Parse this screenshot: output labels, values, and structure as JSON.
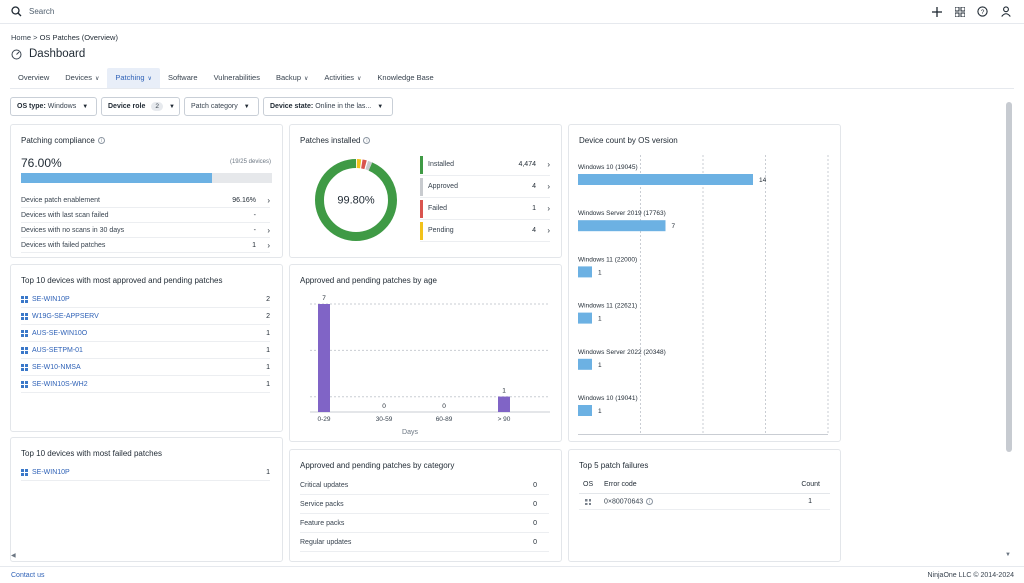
{
  "topbar": {
    "search_placeholder": "Search",
    "icons": [
      "plus-icon",
      "grid-icon",
      "help-icon",
      "user-icon"
    ]
  },
  "breadcrumb": {
    "home": "Home",
    "separator": ">",
    "current": "OS Patches (Overview)"
  },
  "page_title": "Dashboard",
  "tabs": [
    {
      "label": "Overview",
      "dropdown": false,
      "active": false
    },
    {
      "label": "Devices",
      "dropdown": true,
      "active": false
    },
    {
      "label": "Patching",
      "dropdown": true,
      "active": true
    },
    {
      "label": "Software",
      "dropdown": false,
      "active": false
    },
    {
      "label": "Vulnerabilities",
      "dropdown": false,
      "active": false
    },
    {
      "label": "Backup",
      "dropdown": true,
      "active": false
    },
    {
      "label": "Activities",
      "dropdown": true,
      "active": false
    },
    {
      "label": "Knowledge Base",
      "dropdown": false,
      "active": false
    }
  ],
  "filters": {
    "os_type_label": "OS type:",
    "os_type_value": "Windows",
    "device_role_label": "Device role",
    "device_role_count": "2",
    "patch_category_label": "Patch category",
    "device_state_label": "Device state:",
    "device_state_value": "Online in the las..."
  },
  "compliance": {
    "title": "Patching compliance",
    "percent": "76.00%",
    "fraction": "(19/25 devices)",
    "progress": 0.76,
    "rows": [
      {
        "label": "Device patch enablement",
        "value": "96.16%",
        "chevron": true
      },
      {
        "label": "Devices with last scan failed",
        "value": "-",
        "chevron": false
      },
      {
        "label": "Devices with no scans in 30 days",
        "value": "-",
        "chevron": true
      },
      {
        "label": "Devices with failed patches",
        "value": "1",
        "chevron": true
      }
    ]
  },
  "patches_installed": {
    "title": "Patches installed",
    "center_label": "99.80%",
    "segments": [
      {
        "label": "Installed",
        "count": "4,474",
        "value": 4474,
        "color": "#3f9a45"
      },
      {
        "label": "Approved",
        "count": "4",
        "value": 4,
        "color": "#c8cbcf"
      },
      {
        "label": "Failed",
        "count": "1",
        "value": 1,
        "color": "#d9544f"
      },
      {
        "label": "Pending",
        "count": "4",
        "value": 4,
        "color": "#f2c21b"
      }
    ]
  },
  "os_version": {
    "title": "Device count by OS version",
    "chart_data": {
      "type": "bar",
      "orientation": "horizontal",
      "categories": [
        "Windows 10 (19045)",
        "Windows Server 2019 (17763)",
        "Windows 11 (22000)",
        "Windows 11 (22621)",
        "Windows Server 2022 (20348)",
        "Windows 10 (19041)"
      ],
      "values": [
        14,
        7,
        1,
        1,
        1,
        1
      ],
      "color": "#6cb1e3",
      "xlim": [
        0,
        20
      ],
      "grid": true
    }
  },
  "top10_pending": {
    "title": "Top 10 devices with most approved and pending patches",
    "rows": [
      {
        "name": "SE-WIN10P",
        "count": "2"
      },
      {
        "name": "W19G-SE-APPSERV",
        "count": "2"
      },
      {
        "name": "AUS-SE-WIN10O",
        "count": "1"
      },
      {
        "name": "AUS-SETPM-01",
        "count": "1"
      },
      {
        "name": "SE-W10-NMSA",
        "count": "1"
      },
      {
        "name": "SE-WIN10S-WH2",
        "count": "1"
      }
    ]
  },
  "by_age": {
    "title": "Approved and pending patches by age",
    "chart_data": {
      "type": "bar",
      "categories": [
        "0-29",
        "30-59",
        "60-89",
        "> 90"
      ],
      "values": [
        7,
        0,
        0,
        1
      ],
      "data_labels": [
        "7",
        "0",
        "0",
        "1"
      ],
      "xlabel": "Days",
      "color": "#8064c6",
      "ylim": [
        0,
        7
      ],
      "grid": true
    }
  },
  "top10_failed": {
    "title": "Top 10 devices with most failed patches",
    "rows": [
      {
        "name": "SE-WIN10P",
        "count": "1"
      }
    ]
  },
  "by_category": {
    "title": "Approved and pending patches by category",
    "rows": [
      {
        "label": "Critical updates",
        "value": "0"
      },
      {
        "label": "Service packs",
        "value": "0"
      },
      {
        "label": "Feature packs",
        "value": "0"
      },
      {
        "label": "Regular updates",
        "value": "0"
      }
    ]
  },
  "failures": {
    "title": "Top 5 patch failures",
    "headers": {
      "os": "OS",
      "code": "Error code",
      "count": "Count"
    },
    "rows": [
      {
        "code": "0×80070643",
        "count": "1"
      }
    ]
  },
  "footer": {
    "contact": "Contact us",
    "copyright": "NinjaOne LLC © 2014-2024"
  }
}
